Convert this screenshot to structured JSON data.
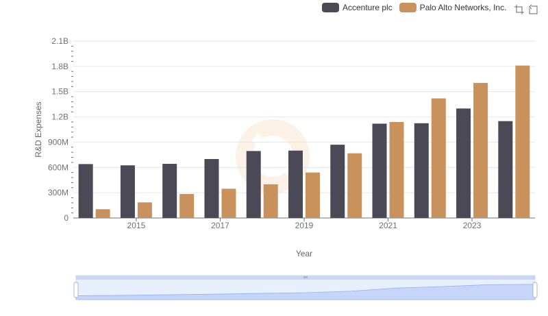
{
  "chart_data": {
    "type": "bar",
    "title": "",
    "xlabel": "Year",
    "ylabel": "R&D Expenses",
    "ylim": [
      0,
      2100000000
    ],
    "yticks": [
      0,
      300000000,
      600000000,
      900000000,
      1200000000,
      1500000000,
      1800000000,
      2100000000
    ],
    "ytick_labels": [
      "0",
      "300M",
      "600M",
      "900M",
      "1.2B",
      "1.5B",
      "1.8B",
      "2.1B"
    ],
    "categories": [
      "2014",
      "2015",
      "2016",
      "2017",
      "2018",
      "2019",
      "2020",
      "2021",
      "2022",
      "2023",
      "2024"
    ],
    "xtick_labels_shown": [
      "2015",
      "2017",
      "2019",
      "2021",
      "2023"
    ],
    "series": [
      {
        "name": "Accenture plc",
        "color": "#4a4955",
        "values": [
          640000000,
          625000000,
          643000000,
          700000000,
          795000000,
          800000000,
          870000000,
          1120000000,
          1125000000,
          1300000000,
          1150000000
        ]
      },
      {
        "name": "Palo Alto Networks, Inc.",
        "color": "#c9925c",
        "values": [
          104000000,
          185000000,
          285000000,
          347000000,
          400000000,
          540000000,
          768000000,
          1140000000,
          1420000000,
          1604000000,
          1810000000
        ]
      }
    ],
    "legend_position": "top-right",
    "grid": true
  },
  "toolbar": {
    "icons": [
      "zoom-icon",
      "restore-icon"
    ]
  }
}
